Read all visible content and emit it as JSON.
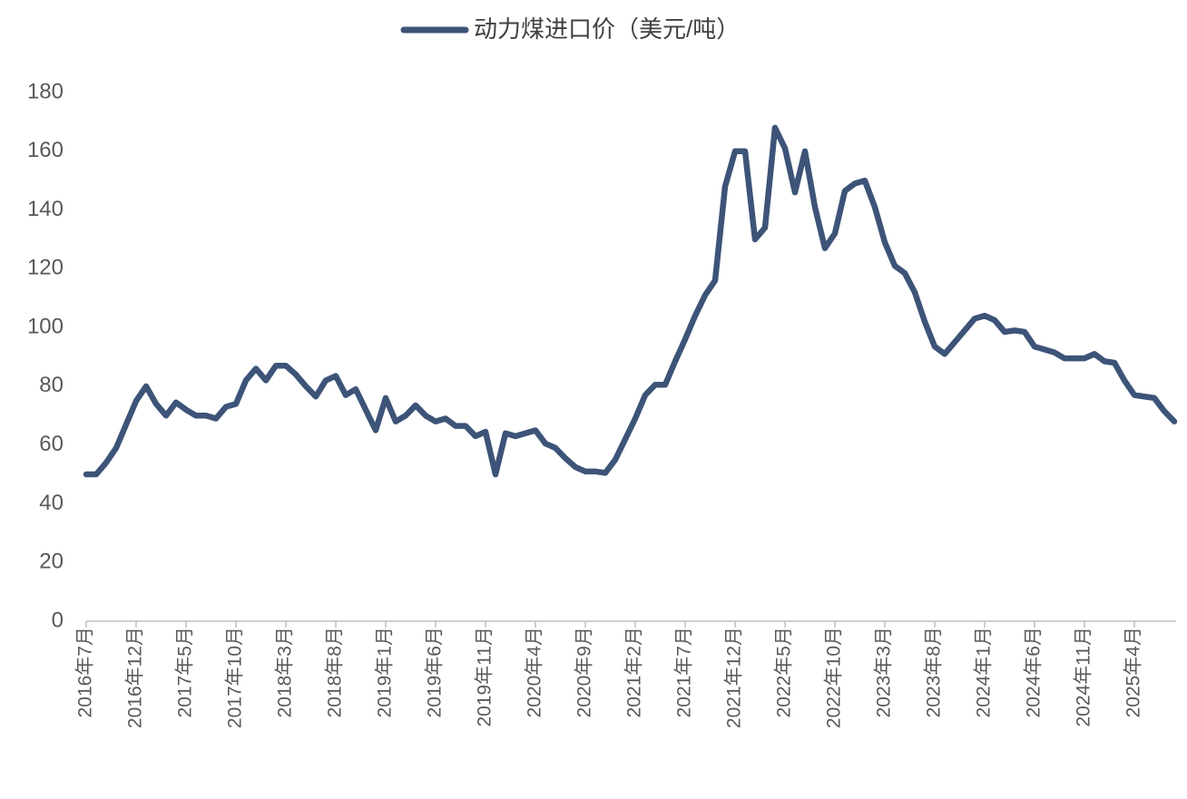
{
  "chart_data": {
    "type": "line",
    "categories": [
      "2016年7月",
      null,
      null,
      null,
      null,
      "2016年12月",
      null,
      null,
      null,
      null,
      "2017年5月",
      null,
      null,
      null,
      null,
      "2017年10月",
      null,
      null,
      null,
      null,
      "2018年3月",
      null,
      null,
      null,
      null,
      "2018年8月",
      null,
      null,
      null,
      null,
      "2019年1月",
      null,
      null,
      null,
      null,
      "2019年6月",
      null,
      null,
      null,
      null,
      "2019年11月",
      null,
      null,
      null,
      null,
      "2020年4月",
      null,
      null,
      null,
      null,
      "2020年9月",
      null,
      null,
      null,
      null,
      "2021年2月",
      null,
      null,
      null,
      null,
      "2021年7月",
      null,
      null,
      null,
      null,
      "2021年12月",
      null,
      null,
      null,
      null,
      "2022年5月",
      null,
      null,
      null,
      null,
      "2022年10月",
      null,
      null,
      null,
      null,
      "2023年3月",
      null,
      null,
      null,
      null,
      "2023年8月",
      null,
      null,
      null,
      null,
      "2024年1月",
      null,
      null,
      null,
      null,
      "2024年6月",
      null,
      null,
      null,
      null,
      "2024年11月",
      null,
      null,
      null,
      null,
      "2025年4月",
      null,
      null,
      null,
      null
    ],
    "series": [
      {
        "name": "动力煤进口价（美元/吨）",
        "color": "#3d5478",
        "values": [
          50,
          50,
          54,
          59,
          67,
          75,
          80,
          74,
          70,
          74.5,
          72,
          70,
          70,
          69,
          73,
          74,
          82,
          86,
          82,
          87,
          87,
          84,
          80,
          76.5,
          82,
          83.5,
          77,
          79,
          72,
          65,
          76,
          68,
          70,
          73.5,
          70,
          68,
          69,
          66.5,
          66.5,
          63,
          64.5,
          50,
          64,
          63,
          64,
          65,
          60.5,
          59,
          55.5,
          52.5,
          51,
          51,
          50.5,
          55,
          62,
          69,
          77,
          80.5,
          80.5,
          88.5,
          96,
          104,
          111,
          116,
          148,
          160,
          160,
          130,
          134,
          168,
          161,
          146,
          160,
          141,
          127,
          132,
          146.5,
          149,
          150,
          141,
          129,
          121,
          118.5,
          112,
          102,
          93.5,
          91,
          95,
          99,
          103,
          104,
          102.5,
          98.5,
          99,
          98.5,
          93.5,
          92.5,
          91.5,
          89.5,
          89.5,
          89.5,
          91,
          88.5,
          88,
          82,
          77,
          76.5,
          76,
          71.5,
          68
        ]
      }
    ],
    "ylim": [
      0,
      180
    ],
    "yticks": [
      0,
      20,
      40,
      60,
      80,
      100,
      120,
      140,
      160,
      180
    ],
    "grid": false,
    "legend": "top"
  }
}
